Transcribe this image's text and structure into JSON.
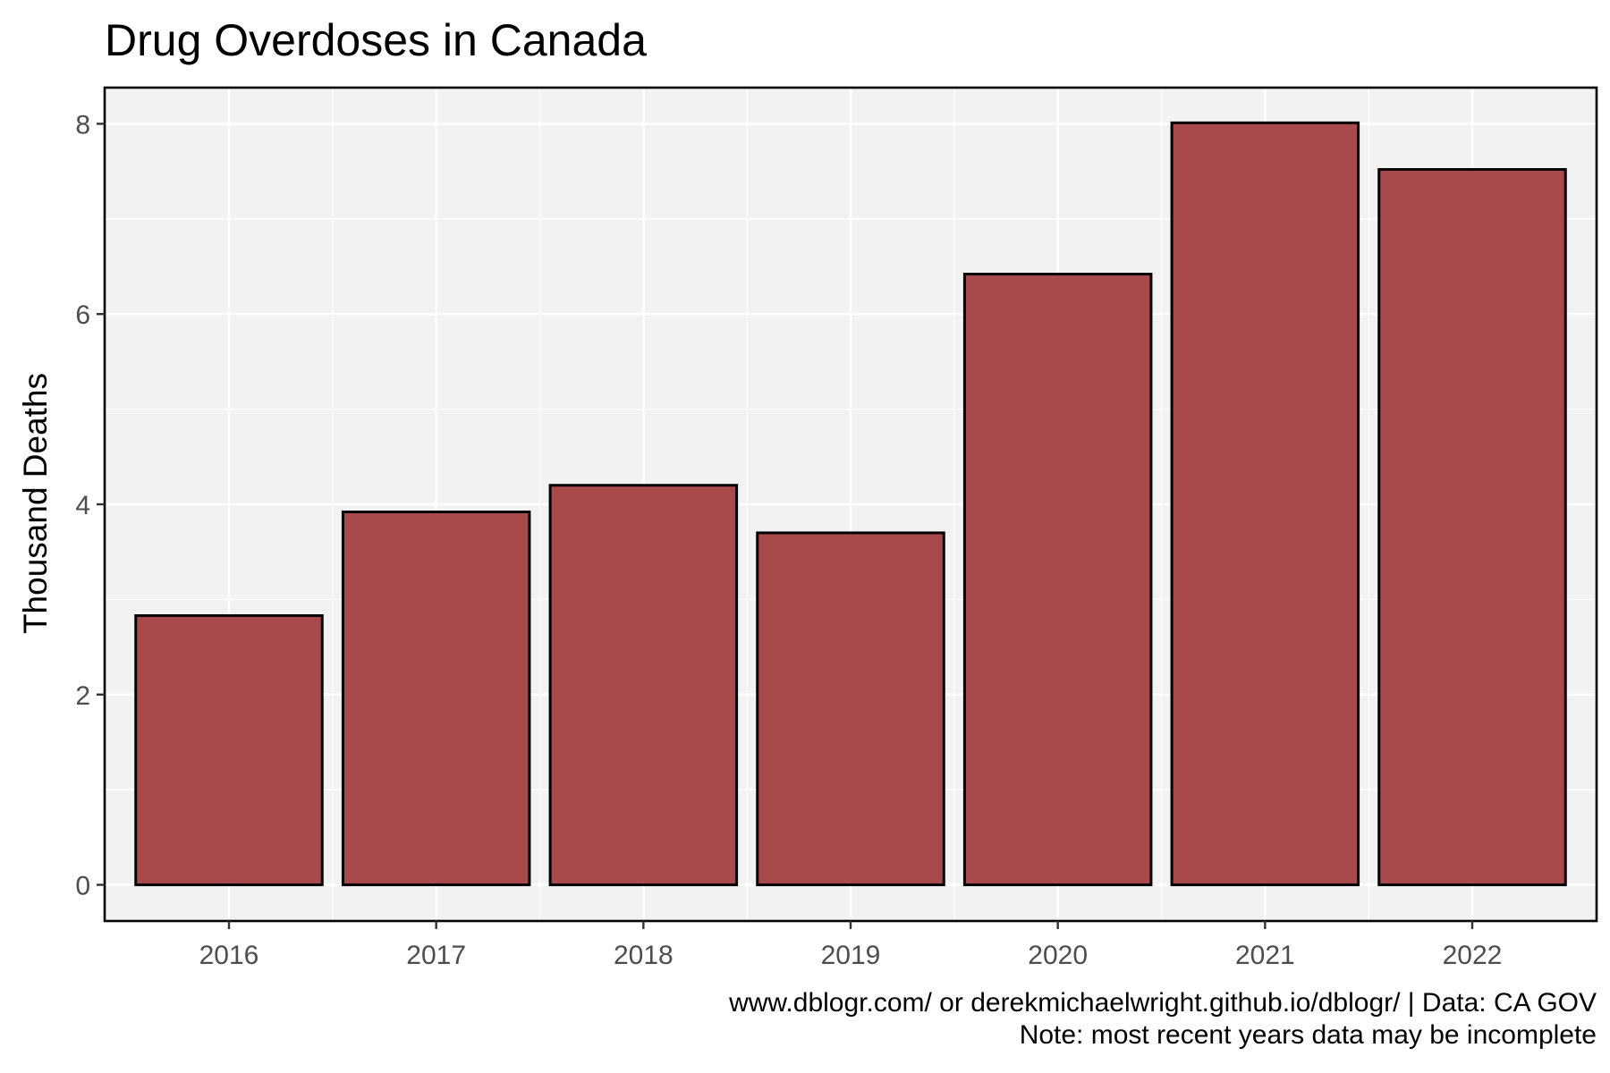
{
  "chart_data": {
    "type": "bar",
    "title": "Drug Overdoses in Canada",
    "xlabel": "",
    "ylabel": "Thousand Deaths",
    "categories": [
      "2016",
      "2017",
      "2018",
      "2019",
      "2020",
      "2021",
      "2022"
    ],
    "values": [
      2.83,
      3.92,
      4.2,
      3.7,
      6.42,
      8.01,
      7.52
    ],
    "ylim": [
      -0.38,
      8.38
    ],
    "yticks": [
      0,
      2,
      4,
      6,
      8
    ],
    "ytick_labels": [
      "0",
      "2",
      "4",
      "6",
      "8"
    ],
    "grid": true,
    "caption": [
      "www.dblogr.com/ or derekmichaelwright.github.io/dblogr/ | Data: CA GOV",
      "Note: most recent years data may be incomplete"
    ]
  },
  "colors": {
    "bar_fill": "#a8494b",
    "bar_outline": "#000000",
    "panel_background": "#f2f2f2",
    "grid": "#ffffff",
    "tick_label": "#4d4d4d"
  }
}
